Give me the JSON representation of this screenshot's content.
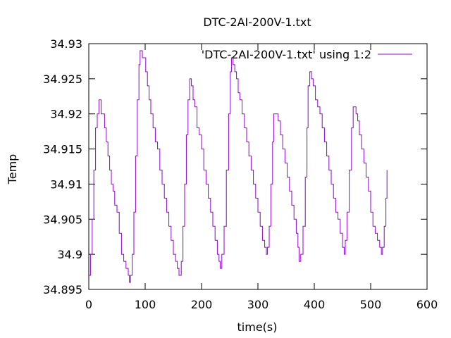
{
  "chart_data": {
    "type": "line",
    "title": "DTC-2AI-200V-1.txt",
    "xlabel": "time(s)",
    "ylabel": "Temp",
    "xlim": [
      0,
      600
    ],
    "ylim": [
      34.895,
      34.93
    ],
    "xticks": [
      0,
      100,
      200,
      300,
      400,
      500,
      600
    ],
    "xtick_labels": [
      "0",
      "100",
      "200",
      "300",
      "400",
      "500",
      "600"
    ],
    "yticks": [
      34.895,
      34.9,
      34.905,
      34.91,
      34.915,
      34.92,
      34.925,
      34.93
    ],
    "ytick_labels": [
      "34.895",
      "34.9",
      "34.905",
      "34.91",
      "34.915",
      "34.92",
      "34.925",
      "34.93"
    ],
    "grid": false,
    "legend_position": "top-right",
    "series": [
      {
        "name": "'DTC-2AI-200V-1.txt' using 1:2",
        "color": "#9400d3",
        "x": [
          0,
          3,
          6,
          9,
          12,
          15,
          18,
          20,
          22,
          25,
          28,
          31,
          34,
          37,
          40,
          43,
          46,
          50,
          54,
          58,
          62,
          66,
          70,
          72,
          74,
          77,
          80,
          83,
          86,
          89,
          91,
          93,
          95,
          98,
          101,
          104,
          107,
          110,
          114,
          118,
          122,
          126,
          130,
          134,
          138,
          142,
          146,
          150,
          154,
          157,
          160,
          162,
          164,
          167,
          170,
          173,
          176,
          179,
          182,
          185,
          188,
          192,
          196,
          200,
          204,
          208,
          212,
          216,
          220,
          224,
          228,
          231,
          233,
          236,
          240,
          244,
          248,
          251,
          253,
          256,
          259,
          262,
          265,
          268,
          272,
          276,
          280,
          284,
          288,
          292,
          296,
          300,
          304,
          308,
          312,
          315,
          317,
          320,
          323,
          326,
          328,
          330,
          333,
          336,
          340,
          344,
          348,
          352,
          356,
          360,
          364,
          368,
          371,
          373,
          376,
          380,
          384,
          387,
          389,
          392,
          395,
          398,
          402,
          406,
          410,
          414,
          418,
          422,
          426,
          430,
          434,
          438,
          442,
          446,
          450,
          453,
          455,
          458,
          462,
          466,
          469,
          471,
          474,
          477,
          480,
          484,
          488,
          492,
          496,
          500,
          504,
          508,
          512,
          516,
          519,
          521,
          524,
          527,
          529
        ],
        "y": [
          34.897,
          34.9,
          34.905,
          34.912,
          34.918,
          34.92,
          34.922,
          34.922,
          34.92,
          34.92,
          34.918,
          34.916,
          34.914,
          34.912,
          34.91,
          34.909,
          34.907,
          34.906,
          34.903,
          34.9,
          34.899,
          34.898,
          34.897,
          34.896,
          34.897,
          34.9,
          34.906,
          34.914,
          34.922,
          34.927,
          34.929,
          34.929,
          34.928,
          34.928,
          34.926,
          34.924,
          34.922,
          34.92,
          34.918,
          34.916,
          34.915,
          34.912,
          34.91,
          34.908,
          34.906,
          34.904,
          34.902,
          34.9,
          34.899,
          34.898,
          34.897,
          34.897,
          34.899,
          34.904,
          34.91,
          34.917,
          34.922,
          34.925,
          34.924,
          34.922,
          34.921,
          34.918,
          34.917,
          34.915,
          34.912,
          34.91,
          34.908,
          34.906,
          34.904,
          34.902,
          34.9,
          34.899,
          34.898,
          34.9,
          34.904,
          34.912,
          34.92,
          34.926,
          34.928,
          34.927,
          34.926,
          34.925,
          34.923,
          34.922,
          34.92,
          34.918,
          34.916,
          34.914,
          34.912,
          34.91,
          34.908,
          34.906,
          34.904,
          34.902,
          34.901,
          34.9,
          34.901,
          34.904,
          34.91,
          34.916,
          34.92,
          34.92,
          34.92,
          34.919,
          34.917,
          34.915,
          34.913,
          34.911,
          34.909,
          34.907,
          34.905,
          34.903,
          34.901,
          34.899,
          34.9,
          34.904,
          34.911,
          34.918,
          34.924,
          34.926,
          34.925,
          34.924,
          34.922,
          34.921,
          34.92,
          34.918,
          34.916,
          34.914,
          34.912,
          34.91,
          34.908,
          34.906,
          34.905,
          34.903,
          34.901,
          34.9,
          34.902,
          34.906,
          34.912,
          34.918,
          34.921,
          34.921,
          34.92,
          34.919,
          34.917,
          34.915,
          34.913,
          34.911,
          34.909,
          34.906,
          34.904,
          34.903,
          34.902,
          34.901,
          34.9,
          34.901,
          34.904,
          34.908,
          34.912
        ]
      }
    ]
  }
}
